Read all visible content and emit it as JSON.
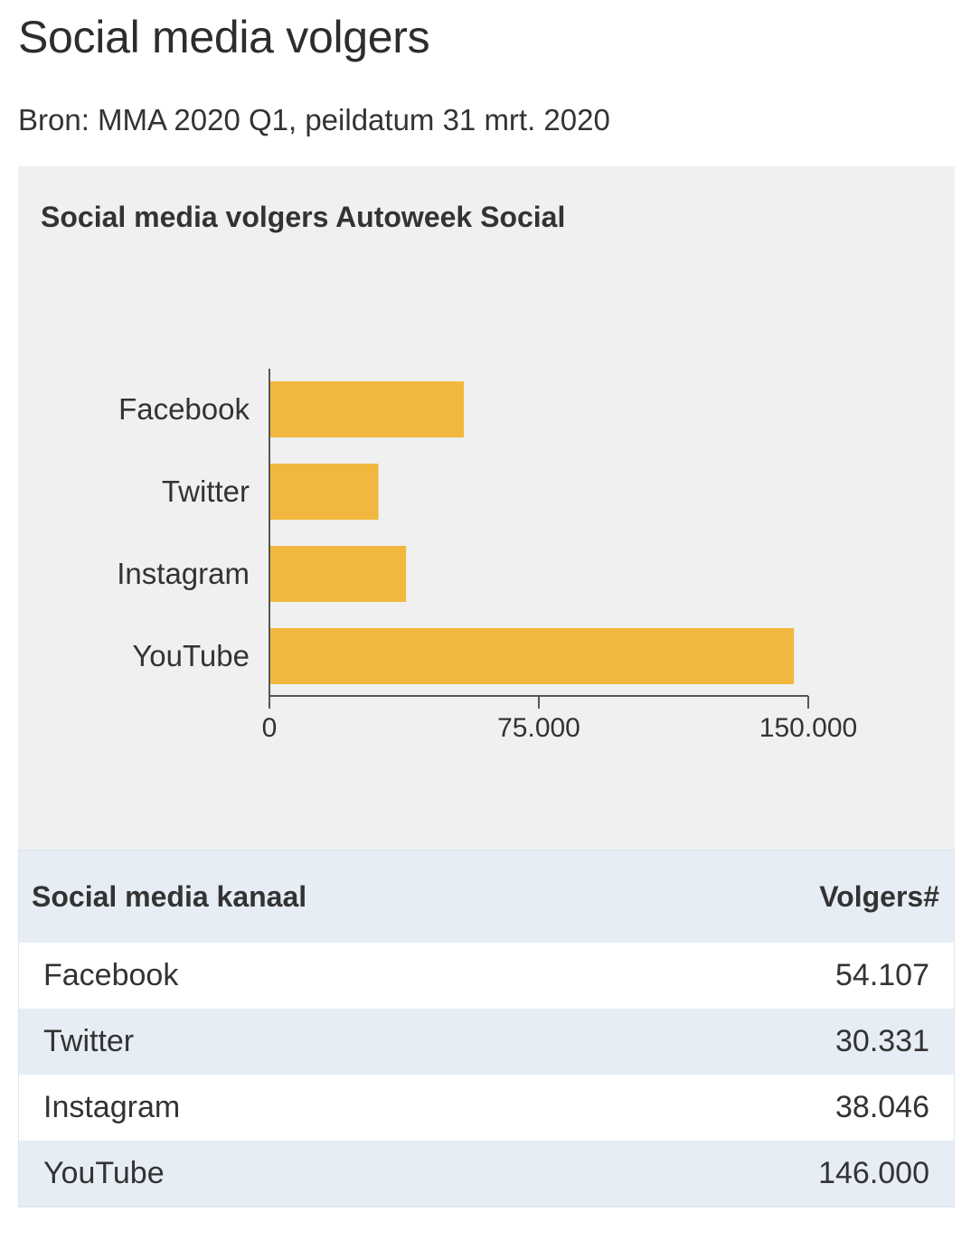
{
  "page": {
    "title": "Social media volgers",
    "source": "Bron: MMA 2020 Q1, peildatum 31 mrt. 2020"
  },
  "colors": {
    "bar": "#f1b73e",
    "panel_background": "#f0f0f0",
    "table_header_background": "#e6edf5",
    "axis": "#555555"
  },
  "chart_data": {
    "type": "bar",
    "orientation": "horizontal",
    "title": "Social media volgers Autoweek Social",
    "categories": [
      "Facebook",
      "Twitter",
      "Instagram",
      "YouTube"
    ],
    "values": [
      54107,
      30331,
      38046,
      146000
    ],
    "xlim": [
      0,
      150000
    ],
    "x_ticks": [
      0,
      75000,
      150000
    ],
    "x_tick_labels": [
      "0",
      "75.000",
      "150.000"
    ],
    "xlabel": "",
    "ylabel": "",
    "grid": false,
    "legend": "none"
  },
  "table": {
    "header": {
      "channel": "Social media kanaal",
      "followers": "Volgers#"
    },
    "rows": [
      {
        "channel": "Facebook",
        "followers": "54.107"
      },
      {
        "channel": "Twitter",
        "followers": "30.331"
      },
      {
        "channel": "Instagram",
        "followers": "38.046"
      },
      {
        "channel": "YouTube",
        "followers": "146.000"
      }
    ]
  }
}
